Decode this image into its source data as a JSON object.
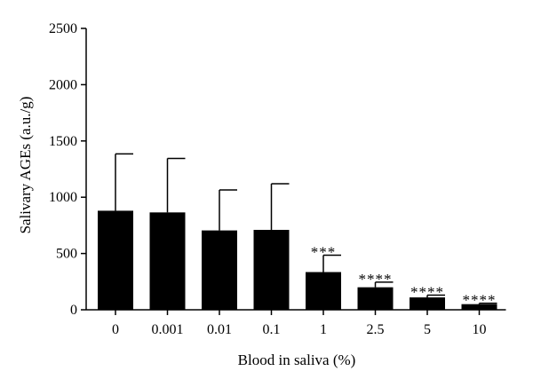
{
  "chart_data": {
    "type": "bar",
    "xlabel": "Blood in saliva (%)",
    "ylabel": "Salivary AGEs (a.u./g)",
    "ylim": [
      0,
      2500
    ],
    "yticks": [
      "0",
      "500",
      "1000",
      "1500",
      "2000",
      "2500"
    ],
    "categories": [
      "0",
      "0.001",
      "0.01",
      "0.1",
      "1",
      "2.5",
      "5",
      "10"
    ],
    "values": [
      880,
      865,
      705,
      710,
      335,
      200,
      110,
      50
    ],
    "error_upper": [
      505,
      480,
      360,
      410,
      150,
      45,
      20,
      8
    ],
    "annotations": [
      "",
      "",
      "",
      "",
      "***",
      "****",
      "****",
      "****"
    ],
    "bar_color": "#000000",
    "grid": false
  }
}
